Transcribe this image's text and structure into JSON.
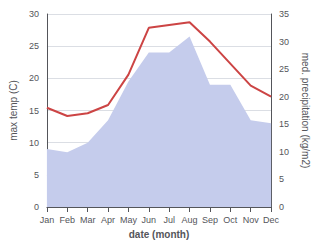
{
  "chart_data": {
    "type": "line",
    "categories": [
      "Jan",
      "Feb",
      "Mar",
      "Apr",
      "May",
      "Jun",
      "Jul",
      "Aug",
      "Sep",
      "Oct",
      "Nov",
      "Dec"
    ],
    "xlabel": "date (month)",
    "ylabel": "max temp (C)",
    "y2label": "med. precipitation (kg/m2)",
    "series": [
      {
        "type": "area",
        "color": "#c5ccec",
        "values": [
          9.0,
          8.5,
          10.0,
          13.5,
          19.5,
          24.0,
          24.0,
          26.5,
          19.0,
          19.0,
          13.5,
          13.0
        ]
      },
      {
        "type": "line",
        "color": "#cc4444",
        "axis": "y2",
        "values": [
          18.0,
          16.5,
          17.0,
          18.5,
          24.0,
          32.5,
          33.0,
          33.5,
          30.0,
          26.0,
          22.0,
          20.0
        ]
      }
    ],
    "ylim": [
      0,
      30
    ],
    "yticks": [
      0,
      5,
      10,
      15,
      20,
      25,
      30
    ],
    "y2lim": [
      0,
      35
    ],
    "y2ticks": [
      0,
      5,
      10,
      15,
      20,
      25,
      30,
      35
    ],
    "grid": true
  }
}
